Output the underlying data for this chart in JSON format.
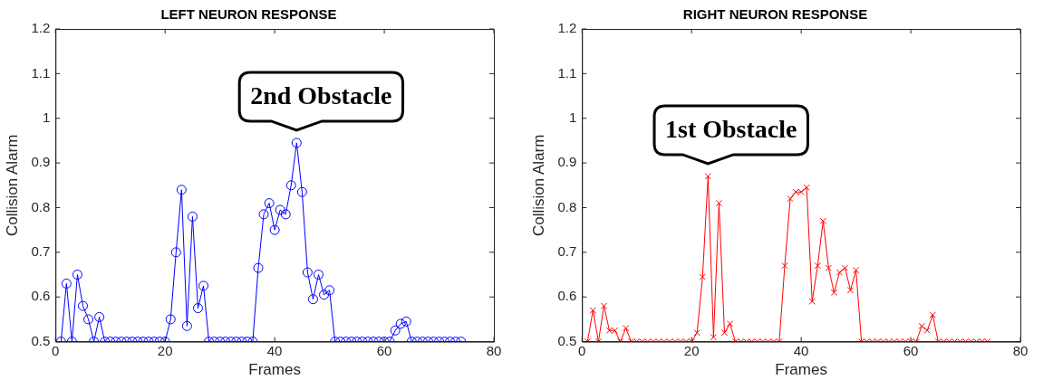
{
  "chart_data": [
    {
      "type": "line",
      "title": "LEFT NEURON RESPONSE",
      "xlabel": "Frames",
      "ylabel": "Collision Alarm",
      "marker": "circle",
      "x": [
        1,
        2,
        3,
        4,
        5,
        6,
        7,
        8,
        9,
        10,
        11,
        12,
        13,
        14,
        15,
        16,
        17,
        18,
        19,
        20,
        21,
        22,
        23,
        24,
        25,
        26,
        27,
        28,
        29,
        30,
        31,
        32,
        33,
        34,
        35,
        36,
        37,
        38,
        39,
        40,
        41,
        42,
        43,
        44,
        45,
        46,
        47,
        48,
        49,
        50,
        51,
        52,
        53,
        54,
        55,
        56,
        57,
        58,
        59,
        60,
        61,
        62,
        63,
        64,
        65,
        66,
        67,
        68,
        69,
        70,
        71,
        72,
        73,
        74
      ],
      "series": [
        {
          "color": "#0000ff",
          "values": [
            0.5,
            0.63,
            0.5,
            0.65,
            0.58,
            0.55,
            0.5,
            0.555,
            0.5,
            0.5,
            0.5,
            0.5,
            0.5,
            0.5,
            0.5,
            0.5,
            0.5,
            0.5,
            0.5,
            0.5,
            0.55,
            0.7,
            0.84,
            0.535,
            0.78,
            0.575,
            0.625,
            0.5,
            0.5,
            0.5,
            0.5,
            0.5,
            0.5,
            0.5,
            0.5,
            0.5,
            0.665,
            0.785,
            0.81,
            0.75,
            0.795,
            0.785,
            0.85,
            0.945,
            0.835,
            0.655,
            0.595,
            0.65,
            0.605,
            0.615,
            0.5,
            0.5,
            0.5,
            0.5,
            0.5,
            0.5,
            0.5,
            0.5,
            0.5,
            0.5,
            0.5,
            0.525,
            0.54,
            0.545,
            0.5,
            0.5,
            0.5,
            0.5,
            0.5,
            0.5,
            0.5,
            0.5,
            0.5,
            0.5
          ]
        }
      ],
      "xlim": [
        0,
        80
      ],
      "xticks": [
        0,
        20,
        40,
        60,
        80
      ],
      "ylim": [
        0.5,
        1.2
      ],
      "yticks": [
        0.5,
        0.6,
        0.7,
        0.8,
        0.9,
        1,
        1.1,
        1.2
      ],
      "annotations": [
        {
          "text": "2nd Obstacle",
          "x": 44,
          "y": 0.945
        }
      ]
    },
    {
      "type": "line",
      "title": "RIGHT NEURON RESPONSE",
      "xlabel": "Frames",
      "ylabel": "Collision Alarm",
      "marker": "cross",
      "x": [
        1,
        2,
        3,
        4,
        5,
        6,
        7,
        8,
        9,
        10,
        11,
        12,
        13,
        14,
        15,
        16,
        17,
        18,
        19,
        20,
        21,
        22,
        23,
        24,
        25,
        26,
        27,
        28,
        29,
        30,
        31,
        32,
        33,
        34,
        35,
        36,
        37,
        38,
        39,
        40,
        41,
        42,
        43,
        44,
        45,
        46,
        47,
        48,
        49,
        50,
        51,
        52,
        53,
        54,
        55,
        56,
        57,
        58,
        59,
        60,
        61,
        62,
        63,
        64,
        65,
        66,
        67,
        68,
        69,
        70,
        71,
        72,
        73,
        74
      ],
      "series": [
        {
          "color": "#ff0000",
          "values": [
            0.5,
            0.57,
            0.5,
            0.58,
            0.525,
            0.525,
            0.5,
            0.53,
            0.5,
            0.5,
            0.5,
            0.5,
            0.5,
            0.5,
            0.5,
            0.5,
            0.5,
            0.5,
            0.5,
            0.5,
            0.52,
            0.645,
            0.87,
            0.51,
            0.81,
            0.52,
            0.54,
            0.5,
            0.5,
            0.5,
            0.5,
            0.5,
            0.5,
            0.5,
            0.5,
            0.5,
            0.67,
            0.82,
            0.835,
            0.835,
            0.845,
            0.59,
            0.67,
            0.77,
            0.665,
            0.61,
            0.655,
            0.665,
            0.615,
            0.66,
            0.5,
            0.5,
            0.5,
            0.5,
            0.5,
            0.5,
            0.5,
            0.5,
            0.5,
            0.5,
            0.5,
            0.535,
            0.525,
            0.56,
            0.5,
            0.5,
            0.5,
            0.5,
            0.5,
            0.5,
            0.5,
            0.5,
            0.5,
            0.5
          ]
        }
      ],
      "xlim": [
        0,
        80
      ],
      "xticks": [
        0,
        20,
        40,
        60,
        80
      ],
      "ylim": [
        0.5,
        1.2
      ],
      "yticks": [
        0.5,
        0.6,
        0.7,
        0.8,
        0.9,
        1,
        1.1,
        1.2
      ],
      "annotations": [
        {
          "text": "1st Obstacle",
          "x": 23,
          "y": 0.87
        }
      ]
    }
  ]
}
